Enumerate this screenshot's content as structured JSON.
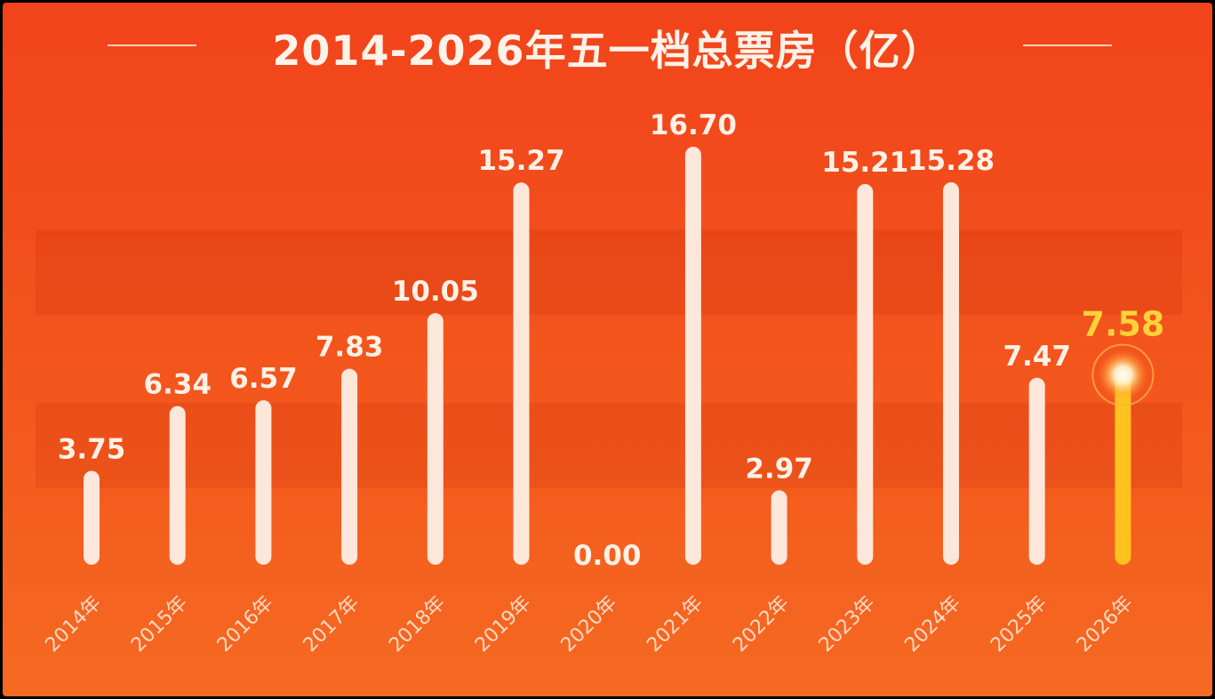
{
  "chart_data": {
    "type": "bar",
    "title": "2014-2026年五一档总票房（亿）",
    "categories": [
      "2014年",
      "2015年",
      "2016年",
      "2017年",
      "2018年",
      "2019年",
      "2020年",
      "2021年",
      "2022年",
      "2023年",
      "2024年",
      "2025年",
      "2026年"
    ],
    "values": [
      3.75,
      6.34,
      6.57,
      7.83,
      10.05,
      15.27,
      0.0,
      16.7,
      2.97,
      15.21,
      15.28,
      7.47,
      7.58
    ],
    "value_labels": [
      "3.75",
      "6.34",
      "6.57",
      "7.83",
      "10.05",
      "15.27",
      "0.00",
      "16.70",
      "2.97",
      "15.21",
      "15.28",
      "7.47",
      "7.58"
    ],
    "highlight_index": 12,
    "colors": {
      "bar": "#fde6da",
      "highlight": "#ffc21f",
      "background": "#f24a1c",
      "label": "#fff1e6",
      "highlight_label": "#ffd23a"
    },
    "ylim": [
      0,
      16.7
    ],
    "grid": false,
    "legend": "none"
  }
}
